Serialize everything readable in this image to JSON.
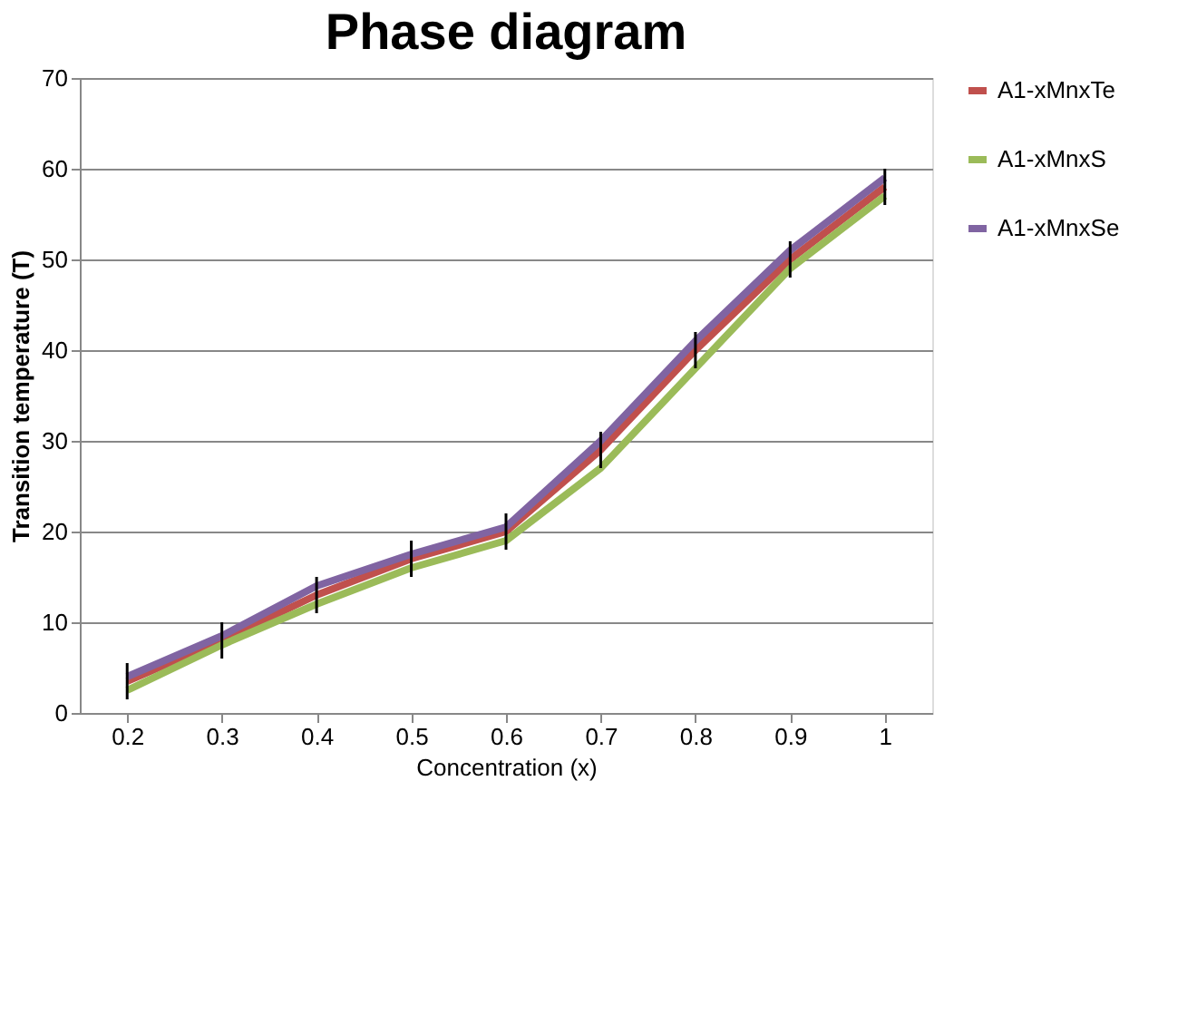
{
  "chart_data": {
    "type": "line",
    "title": "Phase diagram",
    "xlabel": "Concentration (x)",
    "ylabel": "Transition temperature (T)",
    "categories": [
      "0.2",
      "0.3",
      "0.4",
      "0.5",
      "0.6",
      "0.7",
      "0.8",
      "0.9",
      "1"
    ],
    "series": [
      {
        "name": "A1-xMnxTe",
        "color": "#c0504d",
        "values": [
          3.5,
          8,
          13,
          17,
          20,
          29,
          40,
          50,
          58
        ],
        "errors": [
          2,
          2,
          2,
          2,
          2,
          2,
          2,
          2,
          2
        ]
      },
      {
        "name": "A1-xMnxS",
        "color": "#9bbb59",
        "values": [
          2.5,
          7.5,
          12,
          16,
          19,
          27,
          38,
          49,
          57
        ]
      },
      {
        "name": "A1-xMnxSe",
        "color": "#8064a2",
        "values": [
          4,
          8.5,
          14,
          17.5,
          20.5,
          30,
          41,
          51,
          59
        ]
      }
    ],
    "ylim": [
      0,
      70
    ],
    "yticks": [
      0,
      10,
      20,
      30,
      40,
      50,
      60,
      70
    ],
    "grid": "y",
    "legend": "right",
    "marker": "none",
    "line_style": "solid"
  }
}
